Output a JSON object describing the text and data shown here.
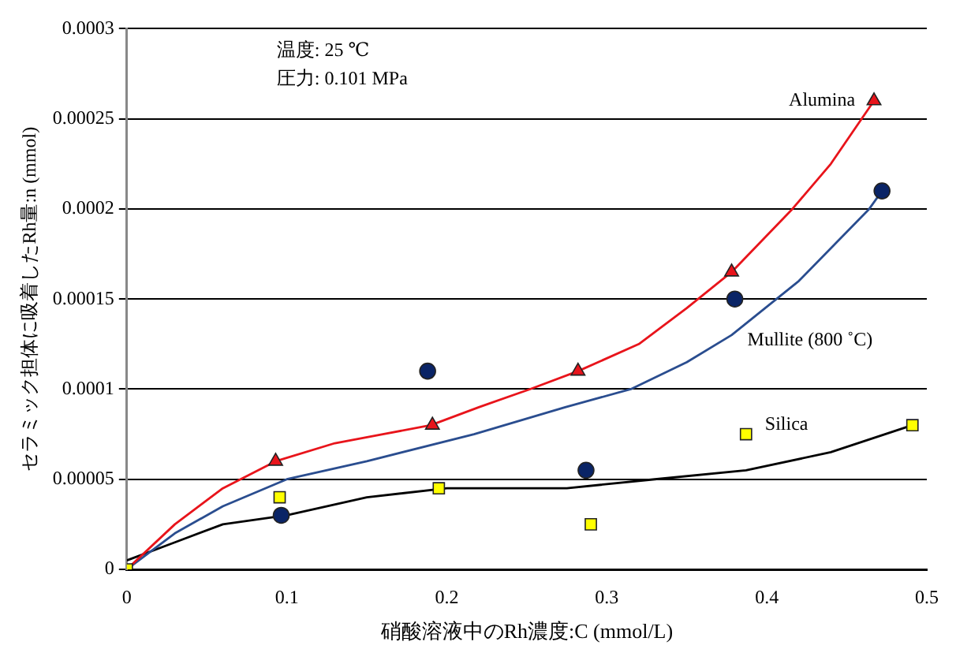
{
  "chart_data": {
    "type": "scatter",
    "xlabel": "硝酸溶液中のRh濃度:C (mmol/L)",
    "ylabel": "セラミック担体に吸着したRh量:n (mmol)",
    "annotations": [
      "温度: 25 ℃",
      "圧力: 0.101 MPa"
    ],
    "xlim": [
      0,
      0.5
    ],
    "xticks": [
      0,
      0.1,
      0.2,
      0.3,
      0.4,
      0.5
    ],
    "ylim": [
      0,
      0.0003
    ],
    "yticks": [
      0,
      {
        "value": 5e-05,
        "label": "0.00005"
      },
      0.0001,
      0.00015,
      0.0002,
      0.00025,
      0.0003
    ],
    "grid": "y",
    "legend": false,
    "series": [
      {
        "type": "line",
        "color": "#e8141b",
        "marker": "none",
        "x": [
          0,
          0.03,
          0.06,
          0.093,
          0.13,
          0.16,
          0.19,
          0.22,
          0.252,
          0.282,
          0.32,
          0.35,
          0.378,
          0.416,
          0.44,
          0.467
        ],
        "values": [
          0,
          2.5e-05,
          4.5e-05,
          6e-05,
          7e-05,
          7.5e-05,
          8e-05,
          9e-05,
          0.0001,
          0.00011,
          0.000125,
          0.000145,
          0.000165,
          0.0002,
          0.000225,
          0.00026
        ]
      },
      {
        "type": "line",
        "color": "#2a4d8f",
        "marker": "none",
        "x": [
          0,
          0.03,
          0.06,
          0.1,
          0.15,
          0.217,
          0.274,
          0.315,
          0.35,
          0.378,
          0.42,
          0.464,
          0.472
        ],
        "values": [
          0,
          2e-05,
          3.5e-05,
          5e-05,
          6e-05,
          7.5e-05,
          9e-05,
          0.0001,
          0.000115,
          0.00013,
          0.00016,
          0.0002,
          0.00021
        ]
      },
      {
        "type": "line",
        "color": "#000000",
        "marker": "none",
        "x": [
          0,
          0.03,
          0.06,
          0.1,
          0.15,
          0.2,
          0.275,
          0.33,
          0.387,
          0.44,
          0.491
        ],
        "values": [
          5e-06,
          1.5e-05,
          2.5e-05,
          3e-05,
          4e-05,
          4.5e-05,
          4.5e-05,
          5e-05,
          5.5e-05,
          6.5e-05,
          8e-05
        ]
      },
      {
        "type": "scatter",
        "name": "Alumina",
        "color": "#e8141b",
        "marker": "triangle",
        "x": [
          0.093,
          0.191,
          0.282,
          0.378,
          0.467
        ],
        "values": [
          6e-05,
          8e-05,
          0.00011,
          0.000165,
          0.00026
        ]
      },
      {
        "type": "scatter",
        "name": "Mullite (800 ˚C)",
        "color": "#0a2466",
        "marker": "circle",
        "x": [
          0.0965,
          0.188,
          0.287,
          0.38,
          0.472
        ],
        "values": [
          3e-05,
          0.00011,
          5.5e-05,
          0.00015,
          0.00021
        ]
      },
      {
        "type": "scatter",
        "name": "Silica",
        "color": "#ffff00",
        "marker": "square",
        "x": [
          0,
          0.0955,
          0.195,
          0.29,
          0.387,
          0.491
        ],
        "values": [
          0,
          4e-05,
          4.5e-05,
          2.5e-05,
          7.5e-05,
          8e-05
        ]
      }
    ]
  }
}
